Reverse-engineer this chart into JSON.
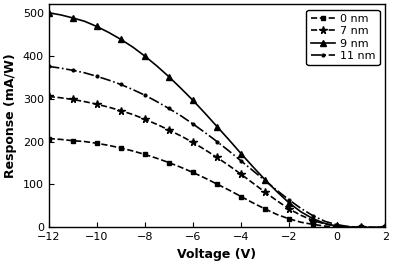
{
  "title": "",
  "xlabel": "Voltage (V)",
  "ylabel": "Response (mA/W)",
  "xlim": [
    -12,
    2
  ],
  "ylim": [
    0,
    520
  ],
  "xticks": [
    -12,
    -10,
    -8,
    -6,
    -4,
    -2,
    0,
    2
  ],
  "yticks": [
    0,
    100,
    200,
    300,
    400,
    500
  ],
  "background_color": "#ffffff",
  "series": [
    {
      "label": "0 nm",
      "marker": "s",
      "linestyle": "--",
      "color": "#000000",
      "x": [
        -12,
        -11.5,
        -11,
        -10.5,
        -10,
        -9.5,
        -9,
        -8.5,
        -8,
        -7.5,
        -7,
        -6.5,
        -6,
        -5.5,
        -5,
        -4.5,
        -4,
        -3.5,
        -3,
        -2.5,
        -2,
        -1.5,
        -1,
        -0.5,
        0,
        0.5,
        1,
        1.5,
        2
      ],
      "y": [
        207,
        205,
        202,
        200,
        196,
        191,
        185,
        178,
        170,
        161,
        151,
        140,
        128,
        115,
        101,
        87,
        72,
        57,
        43,
        30,
        20,
        12,
        7,
        3,
        1,
        0,
        0,
        0,
        0
      ]
    },
    {
      "label": "7 nm",
      "marker": "*",
      "linestyle": "--",
      "color": "#000000",
      "x": [
        -12,
        -11.5,
        -11,
        -10.5,
        -10,
        -9.5,
        -9,
        -8.5,
        -8,
        -7.5,
        -7,
        -6.5,
        -6,
        -5.5,
        -5,
        -4.5,
        -4,
        -3.5,
        -3,
        -2.5,
        -2,
        -1.5,
        -1,
        -0.5,
        0,
        0.5,
        1,
        1.5,
        2
      ],
      "y": [
        305,
        302,
        298,
        293,
        287,
        280,
        272,
        263,
        252,
        240,
        227,
        213,
        198,
        181,
        163,
        144,
        124,
        103,
        82,
        62,
        43,
        28,
        16,
        8,
        3,
        1,
        0,
        0,
        0
      ]
    },
    {
      "label": "9 nm",
      "marker": "^",
      "linestyle": "-",
      "color": "#000000",
      "x": [
        -12,
        -11.5,
        -11,
        -10.5,
        -10,
        -9.5,
        -9,
        -8.5,
        -8,
        -7.5,
        -7,
        -6.5,
        -6,
        -5.5,
        -5,
        -4.5,
        -4,
        -3.5,
        -3,
        -2.5,
        -2,
        -1.5,
        -1,
        -0.5,
        0,
        0.5,
        1,
        1.5,
        2
      ],
      "y": [
        500,
        495,
        488,
        480,
        468,
        454,
        438,
        420,
        399,
        376,
        351,
        324,
        296,
        266,
        235,
        204,
        172,
        141,
        111,
        83,
        57,
        36,
        20,
        9,
        3,
        1,
        0,
        0,
        0
      ]
    },
    {
      "label": "11 nm",
      "marker": ".",
      "linestyle": "-.",
      "color": "#000000",
      "x": [
        -12,
        -11.5,
        -11,
        -10.5,
        -10,
        -9.5,
        -9,
        -8.5,
        -8,
        -7.5,
        -7,
        -6.5,
        -6,
        -5.5,
        -5,
        -4.5,
        -4,
        -3.5,
        -3,
        -2.5,
        -2,
        -1.5,
        -1,
        -0.5,
        0,
        0.5,
        1,
        1.5,
        2
      ],
      "y": [
        375,
        371,
        366,
        360,
        352,
        343,
        333,
        321,
        308,
        293,
        277,
        260,
        241,
        221,
        200,
        178,
        155,
        132,
        109,
        86,
        64,
        44,
        27,
        14,
        6,
        2,
        0,
        0,
        0
      ]
    }
  ],
  "legend_loc": "upper right",
  "legend_fontsize": 8,
  "axis_fontsize": 9,
  "tick_fontsize": 8,
  "linewidth": 1.2
}
